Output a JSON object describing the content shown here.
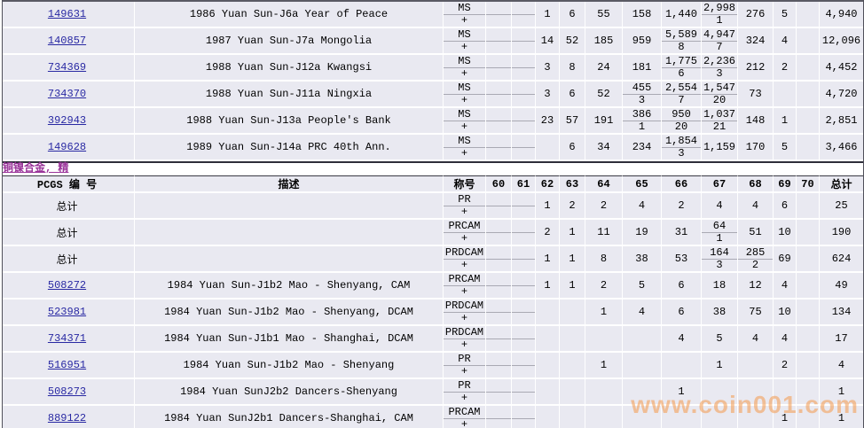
{
  "section": {
    "link_label": "铜镍合金, 精"
  },
  "watermark": {
    "text": "www.coin001.com"
  },
  "colors": {
    "row_background": "#e9e9f1",
    "grid_line": "#ffffff",
    "link_blue": "#2929a3",
    "section_link_purple": "#993399",
    "watermark_orange": "#f59a4d",
    "dark_border": "#3a3a44"
  },
  "columns": {
    "pcgs_label": "PCGS 编 号",
    "desc_label": "描述",
    "designation_label": "称号",
    "grades": [
      "60",
      "61",
      "62",
      "63",
      "64",
      "65",
      "66",
      "67",
      "68",
      "69",
      "70"
    ],
    "total_label": "总计"
  },
  "plus_symbol": "+",
  "table_upper": {
    "rows": [
      {
        "id": "149631",
        "link": true,
        "desc": "1986 Yuan Sun-J6a Year of Peace",
        "designation": "MS",
        "cells": {
          "62": {
            "v": "1"
          },
          "63": {
            "v": "6"
          },
          "64": {
            "v": "55"
          },
          "65": {
            "v": "158"
          },
          "66": {
            "v": "1,440"
          },
          "67": {
            "v": "2,998",
            "p": "1"
          },
          "68": {
            "v": "276"
          },
          "69": {
            "v": "5"
          }
        },
        "total": "4,940"
      },
      {
        "id": "140857",
        "link": true,
        "desc": "1987 Yuan Sun-J7a Mongolia",
        "designation": "MS",
        "cells": {
          "62": {
            "v": "14"
          },
          "63": {
            "v": "52"
          },
          "64": {
            "v": "185"
          },
          "65": {
            "v": "959"
          },
          "66": {
            "v": "5,589",
            "p": "8"
          },
          "67": {
            "v": "4,947",
            "p": "7"
          },
          "68": {
            "v": "324"
          },
          "69": {
            "v": "4"
          }
        },
        "total": "12,096"
      },
      {
        "id": "734369",
        "link": true,
        "desc": "1988 Yuan Sun-J12a Kwangsi",
        "designation": "MS",
        "cells": {
          "62": {
            "v": "3"
          },
          "63": {
            "v": "8"
          },
          "64": {
            "v": "24"
          },
          "65": {
            "v": "181"
          },
          "66": {
            "v": "1,775",
            "p": "6"
          },
          "67": {
            "v": "2,236",
            "p": "3"
          },
          "68": {
            "v": "212"
          },
          "69": {
            "v": "2"
          }
        },
        "total": "4,452"
      },
      {
        "id": "734370",
        "link": true,
        "desc": "1988 Yuan Sun-J11a Ningxia",
        "designation": "MS",
        "cells": {
          "62": {
            "v": "3"
          },
          "63": {
            "v": "6"
          },
          "64": {
            "v": "52"
          },
          "65": {
            "v": "455",
            "p": "3"
          },
          "66": {
            "v": "2,554",
            "p": "7"
          },
          "67": {
            "v": "1,547",
            "p": "20"
          },
          "68": {
            "v": "73"
          }
        },
        "total": "4,720"
      },
      {
        "id": "392943",
        "link": true,
        "desc": "1988 Yuan Sun-J13a People's Bank",
        "designation": "MS",
        "cells": {
          "62": {
            "v": "23"
          },
          "63": {
            "v": "57"
          },
          "64": {
            "v": "191"
          },
          "65": {
            "v": "386",
            "p": "1"
          },
          "66": {
            "v": "950",
            "p": "20"
          },
          "67": {
            "v": "1,037",
            "p": "21"
          },
          "68": {
            "v": "148"
          },
          "69": {
            "v": "1"
          }
        },
        "total": "2,851"
      },
      {
        "id": "149628",
        "link": true,
        "desc": "1989 Yuan Sun-J14a PRC 40th Ann.",
        "designation": "MS",
        "cells": {
          "63": {
            "v": "6"
          },
          "64": {
            "v": "34"
          },
          "65": {
            "v": "234"
          },
          "66": {
            "v": "1,854",
            "p": "3"
          },
          "67": {
            "v": "1,159"
          },
          "68": {
            "v": "170"
          },
          "69": {
            "v": "5"
          }
        },
        "total": "3,466"
      }
    ]
  },
  "table_lower": {
    "rows": [
      {
        "id": "总计",
        "link": false,
        "desc": "",
        "designation": "PR",
        "cells": {
          "62": {
            "v": "1"
          },
          "63": {
            "v": "2"
          },
          "64": {
            "v": "2"
          },
          "65": {
            "v": "4"
          },
          "66": {
            "v": "2"
          },
          "67": {
            "v": "4"
          },
          "68": {
            "v": "4"
          },
          "69": {
            "v": "6"
          }
        },
        "total": "25"
      },
      {
        "id": "总计",
        "link": false,
        "desc": "",
        "designation": "PRCAM",
        "cells": {
          "62": {
            "v": "2"
          },
          "63": {
            "v": "1"
          },
          "64": {
            "v": "11"
          },
          "65": {
            "v": "19"
          },
          "66": {
            "v": "31"
          },
          "67": {
            "v": "64",
            "p": "1"
          },
          "68": {
            "v": "51"
          },
          "69": {
            "v": "10"
          }
        },
        "total": "190"
      },
      {
        "id": "总计",
        "link": false,
        "desc": "",
        "designation": "PRDCAM",
        "cells": {
          "62": {
            "v": "1"
          },
          "63": {
            "v": "1"
          },
          "64": {
            "v": "8"
          },
          "65": {
            "v": "38"
          },
          "66": {
            "v": "53"
          },
          "67": {
            "v": "164",
            "p": "3"
          },
          "68": {
            "v": "285",
            "p": "2"
          },
          "69": {
            "v": "69"
          }
        },
        "total": "624"
      },
      {
        "id": "508272",
        "link": true,
        "desc": "1984 Yuan Sun-J1b2 Mao - Shenyang, CAM",
        "designation": "PRCAM",
        "cells": {
          "62": {
            "v": "1"
          },
          "63": {
            "v": "1"
          },
          "64": {
            "v": "2"
          },
          "65": {
            "v": "5"
          },
          "66": {
            "v": "6"
          },
          "67": {
            "v": "18"
          },
          "68": {
            "v": "12"
          },
          "69": {
            "v": "4"
          }
        },
        "total": "49"
      },
      {
        "id": "523981",
        "link": true,
        "desc": "1984 Yuan Sun-J1b2 Mao - Shenyang, DCAM",
        "designation": "PRDCAM",
        "cells": {
          "64": {
            "v": "1"
          },
          "65": {
            "v": "4"
          },
          "66": {
            "v": "6"
          },
          "67": {
            "v": "38"
          },
          "68": {
            "v": "75"
          },
          "69": {
            "v": "10"
          }
        },
        "total": "134"
      },
      {
        "id": "734371",
        "link": true,
        "desc": "1984 Yuan Sun-J1b1 Mao - Shanghai, DCAM",
        "designation": "PRDCAM",
        "cells": {
          "66": {
            "v": "4"
          },
          "67": {
            "v": "5"
          },
          "68": {
            "v": "4"
          },
          "69": {
            "v": "4"
          }
        },
        "total": "17"
      },
      {
        "id": "516951",
        "link": true,
        "desc": "1984 Yuan Sun-J1b2 Mao - Shenyang",
        "designation": "PR",
        "cells": {
          "64": {
            "v": "1"
          },
          "67": {
            "v": "1"
          },
          "69": {
            "v": "2"
          }
        },
        "total": "4"
      },
      {
        "id": "508273",
        "link": true,
        "desc": "1984 Yuan SunJ2b2 Dancers-Shenyang",
        "designation": "PR",
        "cells": {
          "66": {
            "v": "1"
          }
        },
        "total": "1"
      },
      {
        "id": "889122",
        "link": true,
        "desc": "1984 Yuan SunJ2b1 Dancers-Shanghai, CAM",
        "designation": "PRCAM",
        "cells": {
          "69": {
            "v": "1"
          }
        },
        "total": "1"
      }
    ]
  }
}
